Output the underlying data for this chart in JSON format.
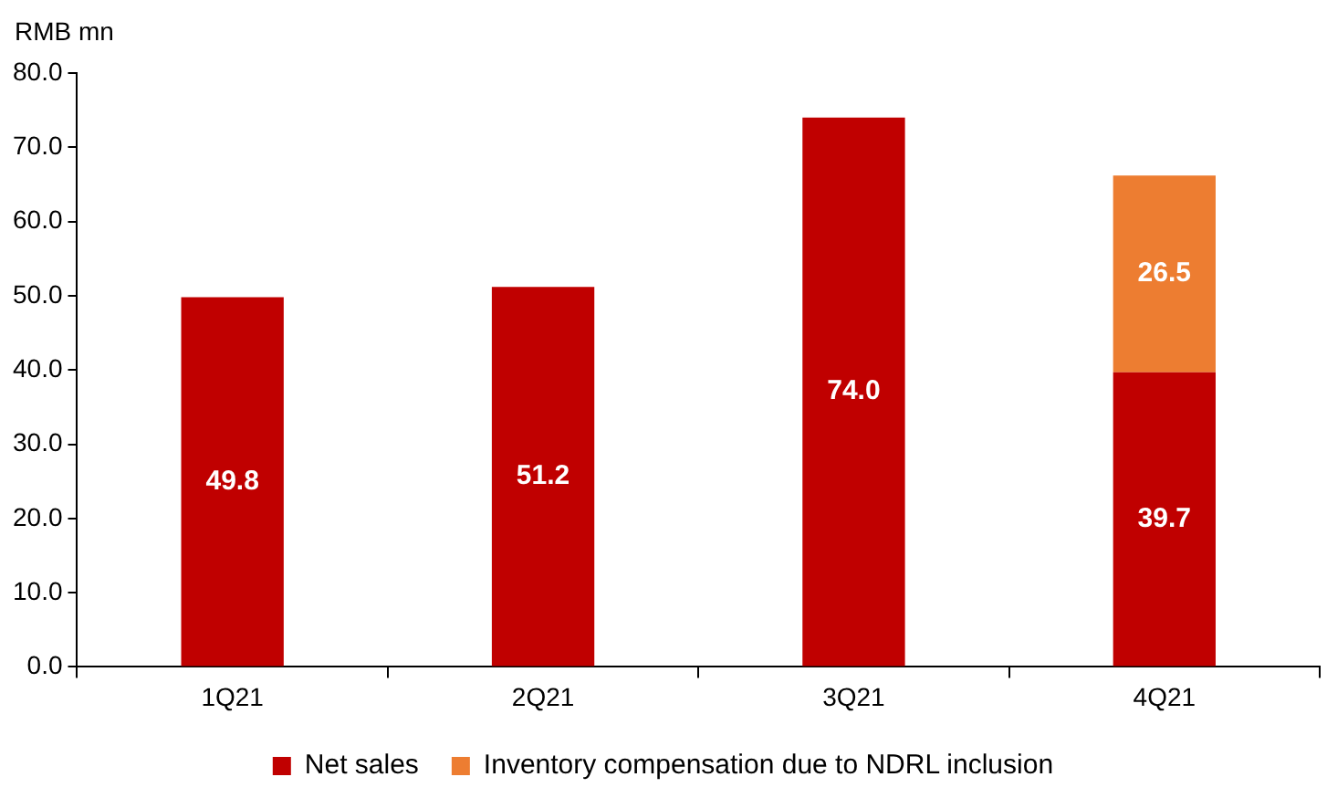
{
  "chart_data": {
    "type": "bar",
    "ylabel": "RMB mn",
    "categories": [
      "1Q21",
      "2Q21",
      "3Q21",
      "4Q21"
    ],
    "series": [
      {
        "name": "Net sales",
        "color": "#c00000",
        "values": [
          49.8,
          51.2,
          74.0,
          39.7
        ],
        "value_labels": [
          "49.8",
          "51.2",
          "74.0",
          "39.7"
        ]
      },
      {
        "name": "Inventory compensation due to NDRL inclusion",
        "color": "#ed7d31",
        "values": [
          null,
          null,
          null,
          26.5
        ],
        "value_labels": [
          null,
          null,
          null,
          "26.5"
        ]
      }
    ],
    "stacked": true,
    "grid": false,
    "legend": "bottom",
    "ylim": [
      0,
      80
    ],
    "yticks": [
      {
        "value": 0,
        "label": "0.0"
      },
      {
        "value": 10,
        "label": "10.0"
      },
      {
        "value": 20,
        "label": "20.0"
      },
      {
        "value": 30,
        "label": "30.0"
      },
      {
        "value": 40,
        "label": "40.0"
      },
      {
        "value": 50,
        "label": "50.0"
      },
      {
        "value": 60,
        "label": "60.0"
      },
      {
        "value": 70,
        "label": "70.0"
      },
      {
        "value": 80,
        "label": "80.0"
      }
    ]
  }
}
